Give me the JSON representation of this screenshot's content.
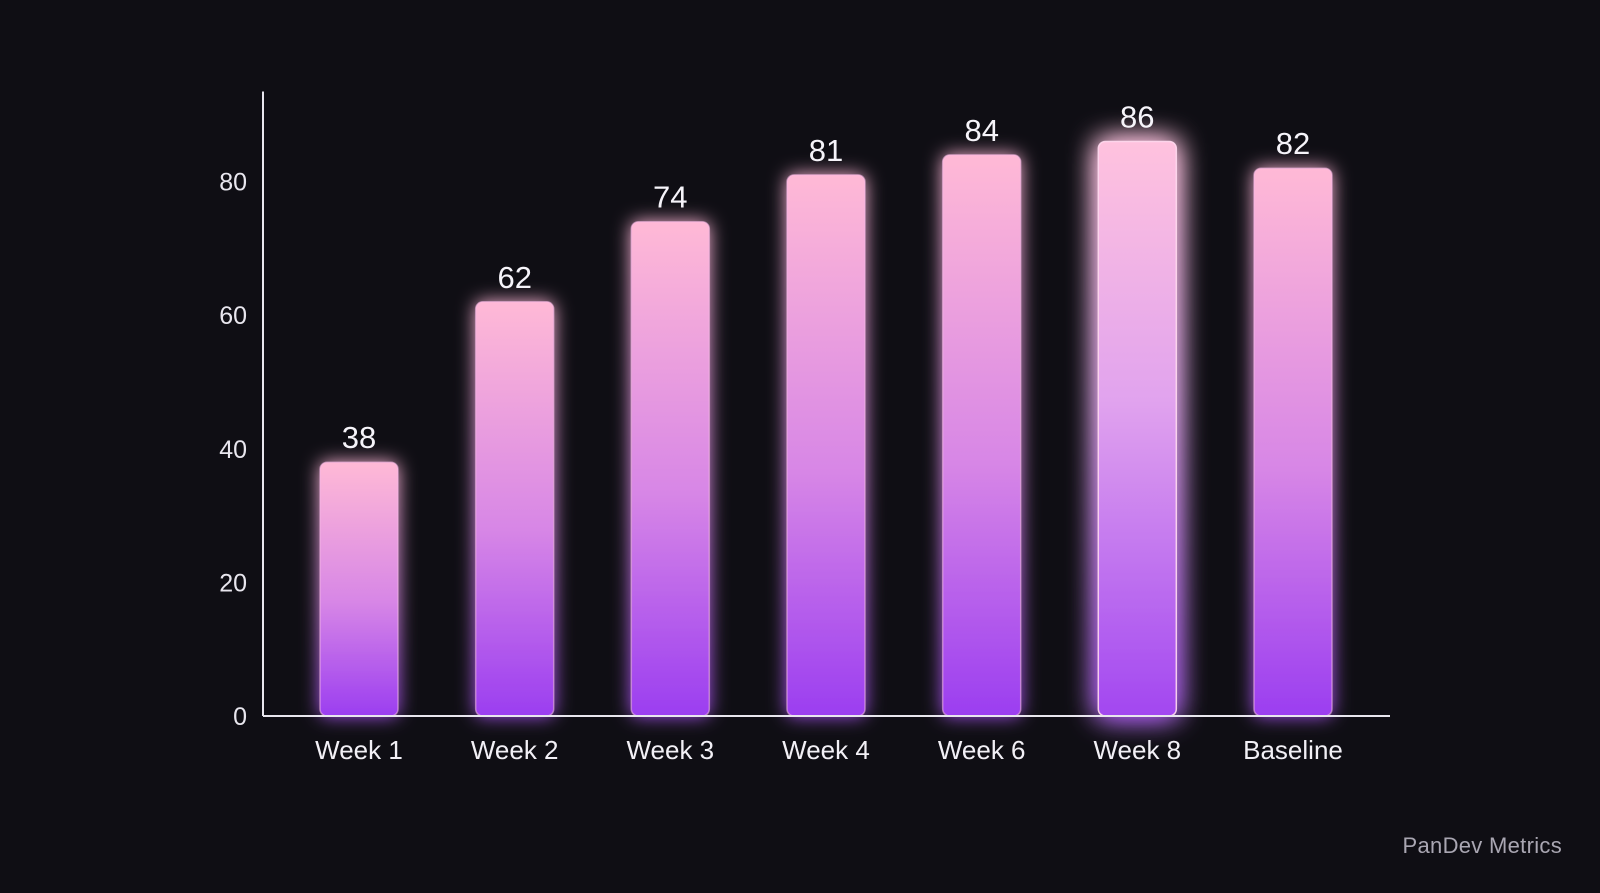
{
  "chart_data": {
    "type": "bar",
    "categories": [
      "Week 1",
      "Week 2",
      "Week 3",
      "Week 4",
      "Week 6",
      "Week 8",
      "Baseline"
    ],
    "values": [
      38,
      62,
      74,
      81,
      84,
      86,
      82
    ],
    "data_labels": [
      "38",
      "62",
      "74",
      "81",
      "84",
      "86",
      "82"
    ],
    "highlighted_category": "Week 8",
    "ylim": [
      0,
      89
    ],
    "yticks": [
      0,
      20,
      40,
      60,
      80
    ],
    "grid": false,
    "colors": {
      "bar_top": "#ffb6d6",
      "bar_bottom": "#9b3df0",
      "glow": "#c250f0",
      "highlight_glow": "#ffc4e6",
      "axis": "#e8e6ee",
      "background": "#0f0e14"
    }
  },
  "watermark": "PanDev Metrics"
}
